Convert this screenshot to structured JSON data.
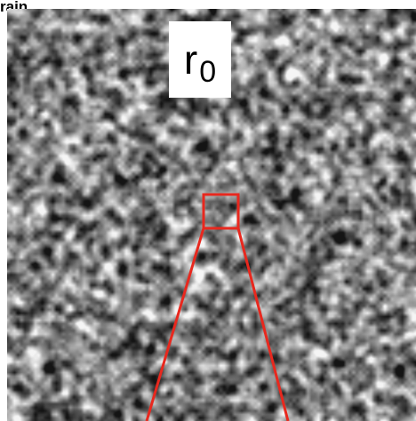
{
  "header": {
    "label": "rain"
  },
  "figure": {
    "symbol": "r",
    "subscript": "0",
    "texture": "grayscale-noise-field",
    "highlight_color": "#e8281e"
  }
}
